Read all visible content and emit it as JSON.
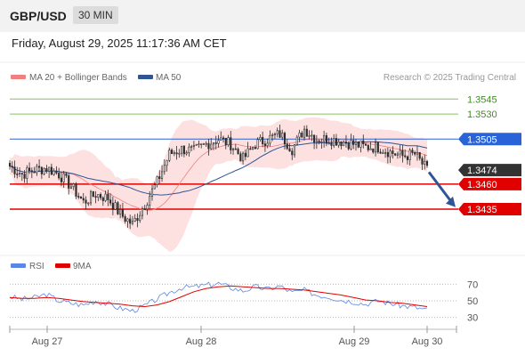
{
  "header": {
    "symbol": "GBP/USD",
    "timeframe": "30 MIN"
  },
  "datetime": "Friday, August 29, 2025 11:17:36 AM CET",
  "chart_data": [
    {
      "type": "candlestick",
      "legend": [
        {
          "name": "MA 20 + Bollinger Bands",
          "color": "#f08080"
        },
        {
          "name": "MA 50",
          "color": "#2f5597"
        }
      ],
      "watermark": "Research © 2025 Trading Central",
      "ylim": [
        1.3395,
        1.3555
      ],
      "levels": [
        {
          "value": 1.3545,
          "label": "1.3545",
          "kind": "target",
          "color": "#8cc060",
          "text_color": "#3f8f1f"
        },
        {
          "value": 1.353,
          "label": "1.3530",
          "kind": "target",
          "color": "#8cc060",
          "text_color": "#3f8f1f"
        },
        {
          "value": 1.3505,
          "label": "1.3505",
          "kind": "pivot",
          "color": "#2a62d8",
          "text_color": "#ffffff"
        },
        {
          "value": 1.3474,
          "label": "1.3474",
          "kind": "last",
          "color": "#333333",
          "text_color": "#ffffff"
        },
        {
          "value": 1.346,
          "label": "1.3460",
          "kind": "support",
          "color": "#e00000",
          "text_color": "#ffffff"
        },
        {
          "value": 1.3435,
          "label": "1.3435",
          "kind": "support",
          "color": "#e00000",
          "text_color": "#ffffff"
        }
      ],
      "arrow": {
        "from": [
          1.3472
        ],
        "to": [
          1.3437
        ],
        "direction": "down",
        "color": "#2f5597"
      },
      "anchors": [
        [
          0,
          1.3478
        ],
        [
          5,
          1.347
        ],
        [
          10,
          1.3474
        ],
        [
          15,
          1.3476
        ],
        [
          20,
          1.347
        ],
        [
          25,
          1.3458
        ],
        [
          30,
          1.3442
        ],
        [
          35,
          1.345
        ],
        [
          40,
          1.3446
        ],
        [
          45,
          1.343
        ],
        [
          50,
          1.342
        ],
        [
          55,
          1.344
        ],
        [
          60,
          1.3462
        ],
        [
          65,
          1.349
        ],
        [
          70,
          1.3495
        ],
        [
          75,
          1.3493
        ],
        [
          80,
          1.35
        ],
        [
          85,
          1.3505
        ],
        [
          90,
          1.35
        ],
        [
          95,
          1.3485
        ],
        [
          100,
          1.35
        ],
        [
          105,
          1.3505
        ],
        [
          110,
          1.351
        ],
        [
          115,
          1.3495
        ],
        [
          120,
          1.3515
        ],
        [
          125,
          1.3505
        ],
        [
          130,
          1.3505
        ],
        [
          135,
          1.3503
        ],
        [
          140,
          1.35
        ],
        [
          145,
          1.3497
        ],
        [
          150,
          1.3497
        ],
        [
          155,
          1.3492
        ],
        [
          160,
          1.3488
        ],
        [
          165,
          1.349
        ],
        [
          170,
          1.3474
        ]
      ],
      "x_ticks": [
        "Aug 27",
        "Aug 28",
        "Aug 29",
        "Aug 30"
      ]
    },
    {
      "type": "line",
      "legend": [
        {
          "name": "RSI",
          "color": "#5b86e5"
        },
        {
          "name": "9MA",
          "color": "#e00000"
        }
      ],
      "ylim": [
        22,
        78
      ],
      "y_ticks": [
        70,
        50,
        30
      ],
      "x_ticks": [
        "Aug 27",
        "Aug 28",
        "Aug 29",
        "Aug 30"
      ],
      "rsi": [
        55,
        52,
        54,
        58,
        50,
        47,
        45,
        50,
        46,
        41,
        38,
        44,
        52,
        60,
        66,
        67,
        69,
        71,
        66,
        62,
        67,
        64,
        68,
        60,
        63,
        57,
        55,
        51,
        49,
        46,
        50,
        47,
        44,
        42,
        39
      ],
      "ma9": [
        54,
        53,
        53,
        54,
        53,
        51,
        49,
        48,
        47,
        46,
        44,
        43,
        45,
        49,
        55,
        61,
        65,
        67,
        68,
        67,
        66,
        65,
        65,
        64,
        63,
        61,
        59,
        57,
        54,
        51,
        50,
        48,
        47,
        45,
        43
      ]
    }
  ]
}
